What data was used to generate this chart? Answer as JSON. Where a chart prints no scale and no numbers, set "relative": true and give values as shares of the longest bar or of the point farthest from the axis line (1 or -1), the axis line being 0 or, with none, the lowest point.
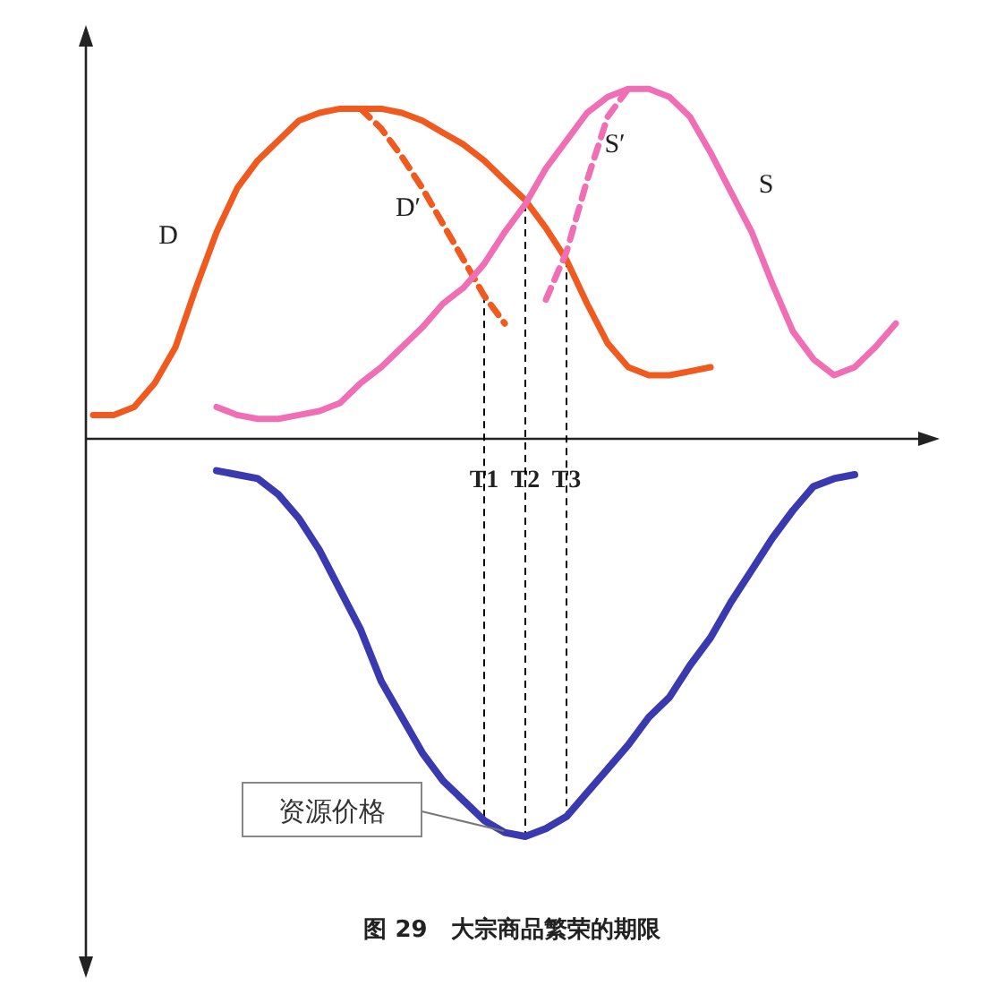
{
  "chart_data": {
    "type": "line",
    "relative": true,
    "title": "图 29　大宗商品繁荣的期限",
    "categories": [
      null,
      null,
      null,
      null,
      null,
      null,
      null,
      null,
      null,
      null,
      null,
      null,
      null,
      null,
      null,
      null,
      null,
      null,
      null,
      "T1",
      null,
      "T2",
      null,
      "T3",
      null,
      null,
      null,
      null,
      null,
      null,
      null,
      null,
      null,
      null,
      null,
      null,
      null,
      null,
      null,
      null
    ],
    "series": [
      {
        "name": "D",
        "color": "#f05a1e",
        "line_style": "solid",
        "values": [
          0.06,
          0.06,
          0.08,
          0.14,
          0.23,
          0.38,
          0.52,
          0.63,
          0.7,
          0.75,
          0.8,
          0.82,
          0.83,
          0.83,
          0.83,
          0.82,
          0.8,
          0.77,
          0.74,
          0.7,
          0.65,
          0.6,
          0.53,
          0.45,
          0.34,
          0.24,
          0.18,
          0.16,
          0.16,
          0.17,
          0.18,
          null,
          null,
          null,
          null,
          null,
          null,
          null,
          null,
          null
        ]
      },
      {
        "name": "D′",
        "color": "#f05a1e",
        "line_style": "dashed",
        "values": [
          null,
          null,
          null,
          null,
          null,
          null,
          null,
          null,
          null,
          null,
          null,
          null,
          null,
          0.83,
          0.78,
          0.71,
          0.63,
          0.54,
          0.45,
          0.36,
          0.29,
          null,
          null,
          null,
          null,
          null,
          null,
          null,
          null,
          null,
          null,
          null,
          null,
          null,
          null,
          null,
          null,
          null,
          null,
          null
        ]
      },
      {
        "name": "S",
        "color": "#f06eb4",
        "line_style": "solid",
        "values": [
          null,
          null,
          null,
          null,
          null,
          null,
          0.08,
          0.06,
          0.05,
          0.05,
          0.06,
          0.07,
          0.09,
          0.14,
          0.18,
          0.23,
          0.28,
          0.34,
          0.38,
          0.44,
          0.52,
          0.59,
          0.68,
          0.75,
          0.82,
          0.86,
          0.88,
          0.88,
          0.86,
          0.81,
          0.72,
          0.62,
          0.52,
          0.39,
          0.27,
          0.2,
          0.16,
          0.18,
          0.23,
          0.29
        ]
      },
      {
        "name": "S′",
        "color": "#f06eb4",
        "line_style": "dashed",
        "values": [
          null,
          null,
          null,
          null,
          null,
          null,
          null,
          null,
          null,
          null,
          null,
          null,
          null,
          null,
          null,
          null,
          null,
          null,
          null,
          null,
          null,
          null,
          0.35,
          0.47,
          0.65,
          0.81,
          0.88,
          null,
          null,
          null,
          null,
          null,
          null,
          null,
          null,
          null,
          null,
          null,
          null,
          null
        ]
      },
      {
        "name": "资源价格",
        "color": "#3a3ab0",
        "line_style": "solid",
        "values": [
          null,
          null,
          null,
          null,
          null,
          null,
          -0.08,
          -0.09,
          -0.1,
          -0.14,
          -0.2,
          -0.28,
          -0.38,
          -0.48,
          -0.61,
          -0.7,
          -0.79,
          -0.86,
          -0.91,
          -0.96,
          -0.99,
          -1,
          -0.98,
          -0.95,
          -0.89,
          -0.83,
          -0.77,
          -0.7,
          -0.65,
          -0.57,
          -0.5,
          -0.41,
          -0.33,
          -0.25,
          -0.18,
          -0.12,
          -0.1,
          -0.09,
          null,
          null
        ]
      }
    ],
    "ref_lines": [
      {
        "axis": "x",
        "value": "T1",
        "line_style": "dashed",
        "color": "#000000"
      },
      {
        "axis": "x",
        "value": "T2",
        "line_style": "dashed",
        "color": "#000000"
      },
      {
        "axis": "x",
        "value": "T3",
        "line_style": "dashed",
        "color": "#000000"
      }
    ],
    "grid": false,
    "legend": false
  }
}
